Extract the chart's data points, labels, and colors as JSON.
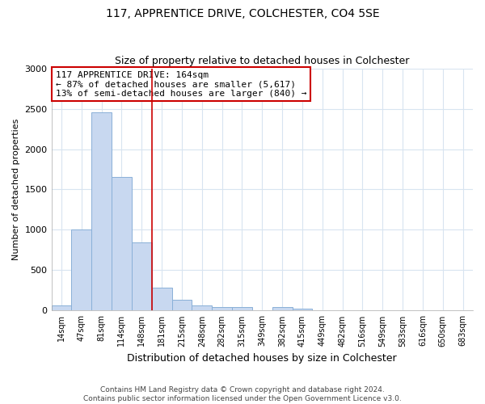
{
  "title": "117, APPRENTICE DRIVE, COLCHESTER, CO4 5SE",
  "subtitle": "Size of property relative to detached houses in Colchester",
  "xlabel": "Distribution of detached houses by size in Colchester",
  "ylabel": "Number of detached properties",
  "bar_labels": [
    "14sqm",
    "47sqm",
    "81sqm",
    "114sqm",
    "148sqm",
    "181sqm",
    "215sqm",
    "248sqm",
    "282sqm",
    "315sqm",
    "349sqm",
    "382sqm",
    "415sqm",
    "449sqm",
    "482sqm",
    "516sqm",
    "549sqm",
    "583sqm",
    "616sqm",
    "650sqm",
    "683sqm"
  ],
  "bar_values": [
    60,
    1000,
    2460,
    1650,
    840,
    280,
    130,
    60,
    40,
    40,
    0,
    40,
    20,
    0,
    0,
    0,
    0,
    0,
    0,
    0,
    0
  ],
  "bar_color": "#c8d8f0",
  "bar_edge_color": "#8ab0d8",
  "red_line_x": 4.5,
  "annotation_line1": "117 APPRENTICE DRIVE: 164sqm",
  "annotation_line2": "← 87% of detached houses are smaller (5,617)",
  "annotation_line3": "13% of semi-detached houses are larger (840) →",
  "annotation_box_color": "#ffffff",
  "annotation_box_edge": "#cc0000",
  "ylim": [
    0,
    3000
  ],
  "yticks": [
    0,
    500,
    1000,
    1500,
    2000,
    2500,
    3000
  ],
  "footer_line1": "Contains HM Land Registry data © Crown copyright and database right 2024.",
  "footer_line2": "Contains public sector information licensed under the Open Government Licence v3.0.",
  "bg_color": "#ffffff",
  "grid_color": "#d8e4f0"
}
